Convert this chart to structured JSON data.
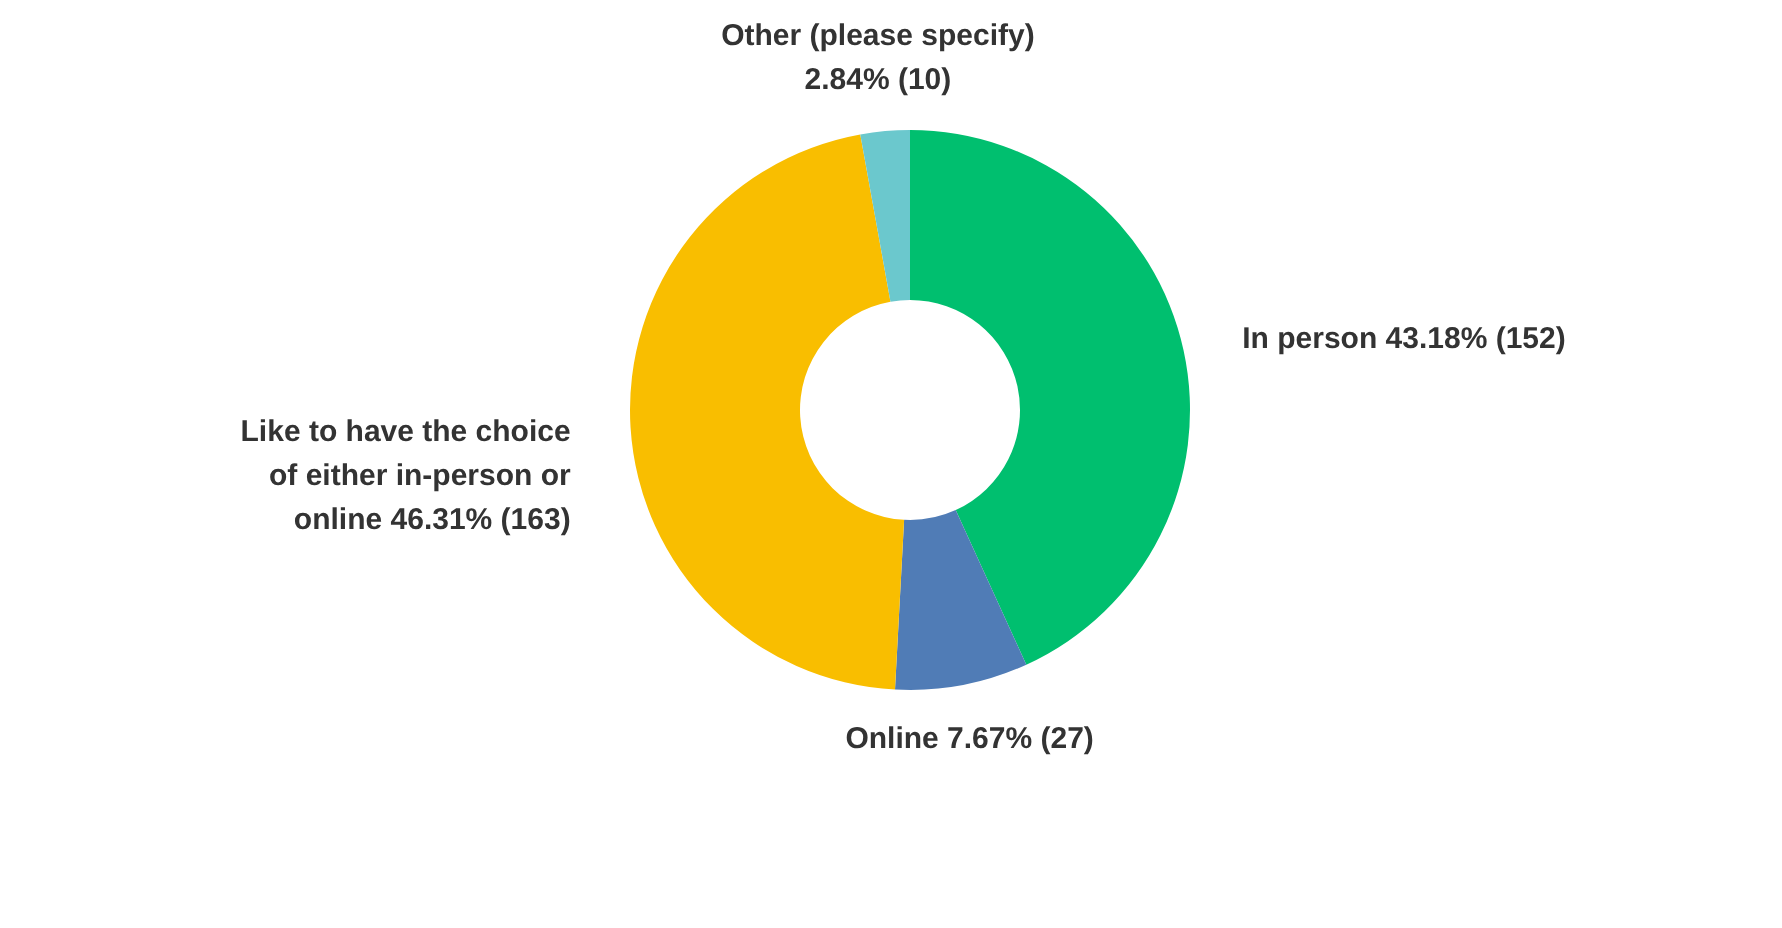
{
  "chart_data": {
    "type": "donut",
    "categories": [
      "In person",
      "Online",
      "Like to have the choice of either in-person or online",
      "Other (please specify)"
    ],
    "values": [
      152,
      27,
      163,
      10
    ],
    "value_labels": [
      "43.18% (152)",
      "7.67% (27)",
      "46.31% (163)",
      "2.84% (10)"
    ],
    "colors": [
      "#00bf6f",
      "#507cb6",
      "#f9be00",
      "#6bc8cd"
    ]
  }
}
